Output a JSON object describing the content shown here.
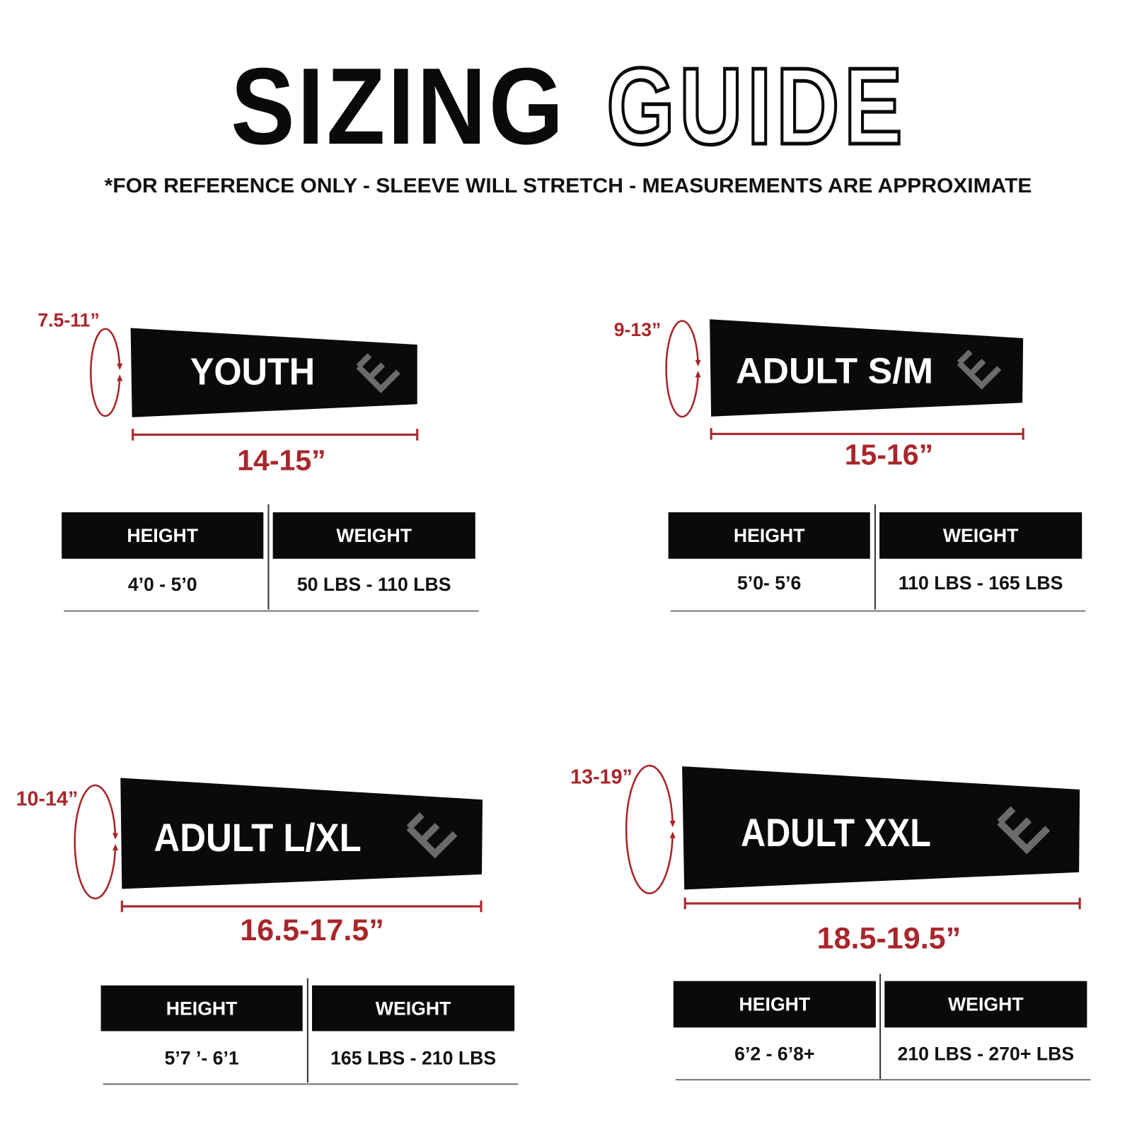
{
  "title": {
    "bold": "SIZING",
    "outline": "GUIDE"
  },
  "subtitle": "*FOR REFERENCE ONLY - SLEEVE WILL STRETCH - MEASUREMENTS ARE APPROXIMATE",
  "colors": {
    "accent_red": "#a8262b",
    "sleeve": "#0a0a0a",
    "logo_gray": "#6b6b6b"
  },
  "logo_icon": "brand-e-logo-icon",
  "sizes": [
    {
      "name": "YOUTH",
      "circumference": "7.5-11”",
      "length": "14-15”",
      "height_header": "HEIGHT",
      "weight_header": "WEIGHT",
      "height": "4’0 - 5’0",
      "weight": "50 LBS - 110 LBS"
    },
    {
      "name": "ADULT S/M",
      "circumference": "9-13”",
      "length": "15-16”",
      "height_header": "HEIGHT",
      "weight_header": "WEIGHT",
      "height": "5’0- 5’6",
      "weight": "110 LBS - 165 LBS"
    },
    {
      "name": "ADULT L/XL",
      "circumference": "10-14”",
      "length": "16.5-17.5”",
      "height_header": "HEIGHT",
      "weight_header": "WEIGHT",
      "height": "5’7 ’- 6’1",
      "weight": "165 LBS - 210 LBS"
    },
    {
      "name": "ADULT XXL",
      "circumference": "13-19”",
      "length": "18.5-19.5”",
      "height_header": "HEIGHT",
      "weight_header": "WEIGHT",
      "height": "6’2 - 6’8+",
      "weight": "210 LBS - 270+ LBS"
    }
  ]
}
